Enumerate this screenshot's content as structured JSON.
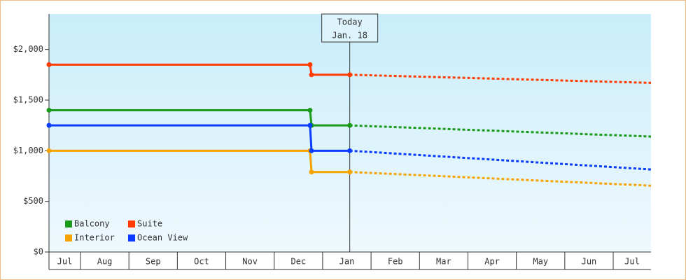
{
  "chart_data": {
    "type": "line",
    "categories": [
      "Jul",
      "Aug",
      "Sep",
      "Oct",
      "Nov",
      "Dec",
      "Jan",
      "Feb",
      "Mar",
      "Apr",
      "May",
      "Jun",
      "Jul"
    ],
    "xlim": [
      0.35,
      12.78
    ],
    "xticks": [
      1,
      2,
      3,
      4,
      5,
      6,
      7,
      8,
      9,
      10,
      11,
      12
    ],
    "ylim": [
      0,
      2350
    ],
    "yticks": [
      {
        "value": 0,
        "label": "$0"
      },
      {
        "value": 500,
        "label": "$500"
      },
      {
        "value": 1000,
        "label": "$1,000"
      },
      {
        "value": 1500,
        "label": "$1,500"
      },
      {
        "value": 2000,
        "label": "$2,000"
      }
    ],
    "today": {
      "x": 6.56,
      "label": "Today",
      "date": "Jan. 18"
    },
    "legend": "lower left",
    "series": [
      {
        "name": "Balcony",
        "color": "#1a9a1a",
        "x": [
          0.35,
          5.74,
          5.77,
          6.56
        ],
        "values": [
          1400,
          1400,
          1250,
          1250
        ],
        "forecast_x": [
          6.56,
          12.78
        ],
        "forecast_values": [
          1250,
          1140
        ]
      },
      {
        "name": "Suite",
        "color": "#ff3d00",
        "x": [
          0.35,
          5.74,
          5.77,
          6.56
        ],
        "values": [
          1850,
          1850,
          1750,
          1750
        ],
        "forecast_x": [
          6.56,
          12.78
        ],
        "forecast_values": [
          1750,
          1670
        ]
      },
      {
        "name": "Interior",
        "color": "#f5a300",
        "x": [
          0.35,
          5.74,
          5.77,
          6.56
        ],
        "values": [
          1000,
          1000,
          790,
          790
        ],
        "forecast_x": [
          6.56,
          12.78
        ],
        "forecast_values": [
          790,
          655
        ]
      },
      {
        "name": "Ocean View",
        "color": "#0a3cff",
        "x": [
          0.35,
          5.74,
          5.77,
          6.56
        ],
        "values": [
          1250,
          1250,
          1000,
          1000
        ],
        "forecast_x": [
          6.56,
          12.78
        ],
        "forecast_values": [
          1000,
          815
        ]
      }
    ]
  }
}
